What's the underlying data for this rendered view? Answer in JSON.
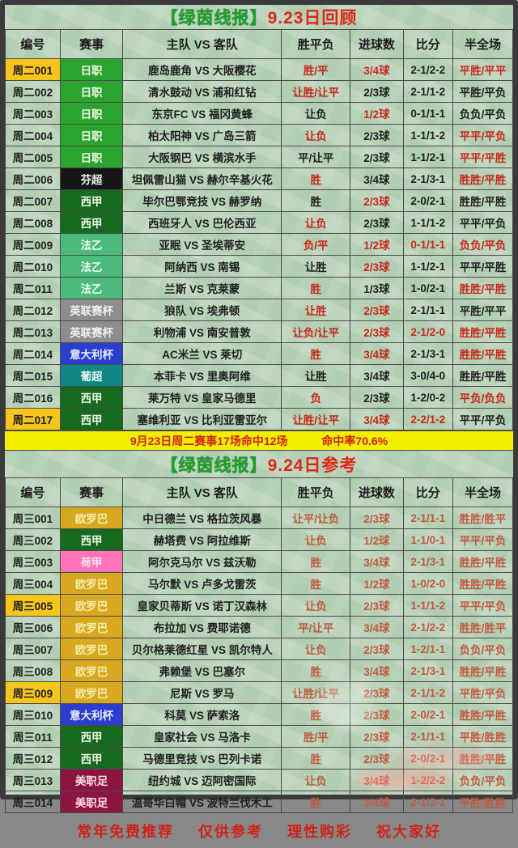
{
  "page": {
    "bg_color": "#b9d3b9",
    "frame_color": "#3a3a3a",
    "accent_red": "#cc2418",
    "accent_green": "#1f9e2e",
    "highlight_yellow": "#f6c51c",
    "banner_bg": "#f4ef00"
  },
  "columns": [
    "编号",
    "赛事",
    "主队 VS 客队",
    "胜平负",
    "进球数",
    "比分",
    "半全场"
  ],
  "league_styles": {
    "日职": {
      "bg": "#2aa42e",
      "fg": "#eef7e6"
    },
    "芬超": {
      "bg": "#151515",
      "fg": "#f0f0e8"
    },
    "西甲": {
      "bg": "#17691f",
      "fg": "#eaf3e4"
    },
    "法乙": {
      "bg": "#4cba7c",
      "fg": "#f0fbf2"
    },
    "英联赛杯": {
      "bg": "#8d8d8d",
      "fg": "#f2f2ee"
    },
    "意大利杯": {
      "bg": "#2c3ed0",
      "fg": "#e8ecff"
    },
    "葡超": {
      "bg": "#108585",
      "fg": "#e6f5f2"
    },
    "欧罗巴": {
      "bg": "#d8a81f",
      "fg": "#f7ecb0"
    },
    "荷甲": {
      "bg": "#ff74ba",
      "fg": "#ffe3f1"
    },
    "美职足": {
      "bg": "#8c1440",
      "fg": "#ffdce4"
    }
  },
  "tables": [
    {
      "title_prefix": "【绿茵线报】",
      "title_suffix": "9.23日回顾",
      "all_red": false,
      "rows": [
        {
          "no": "周二001",
          "hl": true,
          "league": "日职",
          "match": "鹿岛鹿角 VS 大阪樱花",
          "wdl": "胜/平",
          "goals": "3/4球",
          "score": "2-1/2-2",
          "htft": "平胜/平平",
          "red": [
            "wdl",
            "goals",
            "htft"
          ]
        },
        {
          "no": "周二002",
          "hl": false,
          "league": "日职",
          "match": "清水鼓动 VS 浦和红钻",
          "wdl": "让胜/让平",
          "goals": "2/3球",
          "score": "2-1/1-2",
          "htft": "平胜/平负",
          "red": [
            "wdl"
          ]
        },
        {
          "no": "周二003",
          "hl": false,
          "league": "日职",
          "match": "东京FC VS 福冈黄蜂",
          "wdl": "让负",
          "goals": "1/2球",
          "score": "0-1/1-1",
          "htft": "负负/平负",
          "red": [
            "goals"
          ]
        },
        {
          "no": "周二004",
          "hl": false,
          "league": "日职",
          "match": "柏太阳神 VS 广岛三箭",
          "wdl": "让负",
          "goals": "2/3球",
          "score": "1-1/1-2",
          "htft": "平平/平负",
          "red": [
            "wdl",
            "htft"
          ]
        },
        {
          "no": "周二005",
          "hl": false,
          "league": "日职",
          "match": "大阪钢巴 VS 横滨水手",
          "wdl": "平/让平",
          "goals": "2/3球",
          "score": "1-1/2-1",
          "htft": "平平/平胜",
          "red": [
            "htft"
          ]
        },
        {
          "no": "周二006",
          "hl": false,
          "league": "芬超",
          "match": "坦佩雷山猫 VS 赫尔辛基火花",
          "wdl": "胜",
          "goals": "3/4球",
          "score": "2-1/3-1",
          "htft": "胜胜/平胜",
          "red": [
            "wdl",
            "htft"
          ]
        },
        {
          "no": "周二007",
          "hl": false,
          "league": "西甲",
          "match": "毕尔巴鄂竞技 VS 赫罗纳",
          "wdl": "胜",
          "goals": "2/3球",
          "score": "2-0/2-1",
          "htft": "胜胜/平胜",
          "red": [
            "goals"
          ]
        },
        {
          "no": "周二008",
          "hl": false,
          "league": "西甲",
          "match": "西班牙人 VS 巴伦西亚",
          "wdl": "让负",
          "goals": "2/3球",
          "score": "1-1/1-2",
          "htft": "平平/平负",
          "red": [
            "wdl"
          ]
        },
        {
          "no": "周二009",
          "hl": false,
          "league": "法乙",
          "match": "亚眠 VS 圣埃蒂安",
          "wdl": "负/平",
          "goals": "1/2球",
          "score": "0-1/1-1",
          "htft": "负负/平负",
          "red": [
            "wdl",
            "goals",
            "score",
            "htft"
          ]
        },
        {
          "no": "周二010",
          "hl": false,
          "league": "法乙",
          "match": "阿纳西 VS 南锡",
          "wdl": "让胜",
          "goals": "2/3球",
          "score": "1-1/2-1",
          "htft": "平平/平胜",
          "red": [
            "goals"
          ]
        },
        {
          "no": "周二011",
          "hl": false,
          "league": "法乙",
          "match": "兰斯 VS 克莱蒙",
          "wdl": "胜",
          "goals": "1/3球",
          "score": "1-0/2-1",
          "htft": "胜胜/平胜",
          "red": [
            "wdl",
            "htft"
          ]
        },
        {
          "no": "周二012",
          "hl": false,
          "league": "英联赛杯",
          "match": "狼队 VS 埃弗顿",
          "wdl": "让胜",
          "goals": "2/3球",
          "score": "2-1/1-1",
          "htft": "平胜/平平",
          "red": [
            "wdl",
            "goals"
          ]
        },
        {
          "no": "周二013",
          "hl": false,
          "league": "英联赛杯",
          "match": "利物浦 VS 南安普敦",
          "wdl": "让负/让平",
          "goals": "2/3球",
          "score": "2-1/2-0",
          "htft": "胜胜/平胜",
          "red": [
            "wdl",
            "goals",
            "score",
            "htft"
          ]
        },
        {
          "no": "周二014",
          "hl": false,
          "league": "意大利杯",
          "match": "AC米兰 VS 莱切",
          "wdl": "胜",
          "goals": "3/4球",
          "score": "2-1/3-1",
          "htft": "胜胜/平胜",
          "red": [
            "wdl",
            "goals",
            "htft"
          ]
        },
        {
          "no": "周二015",
          "hl": false,
          "league": "葡超",
          "match": "本菲卡 VS 里奥阿维",
          "wdl": "让胜",
          "goals": "3/4球",
          "score": "3-0/4-0",
          "htft": "胜胜/平胜",
          "red": []
        },
        {
          "no": "周二016",
          "hl": false,
          "league": "西甲",
          "match": "莱万特 VS 皇家马德里",
          "wdl": "负",
          "goals": "2/3球",
          "score": "1-2/0-2",
          "htft": "平负/负负",
          "red": [
            "wdl",
            "htft"
          ]
        },
        {
          "no": "周二017",
          "hl": true,
          "league": "西甲",
          "match": "塞维利亚 VS 比利亚雷亚尔",
          "wdl": "让胜/让平",
          "goals": "3/4球",
          "score": "2-2/1-2",
          "htft": "平平/平负",
          "red": [
            "wdl",
            "goals",
            "score"
          ]
        }
      ]
    },
    {
      "title_prefix": "【绿茵线报】",
      "title_suffix": "9.24日参考",
      "all_red": true,
      "rows": [
        {
          "no": "周三001",
          "hl": false,
          "league": "欧罗巴",
          "match": "中日德兰 VS 格拉茨风暴",
          "wdl": "让平/让负",
          "goals": "2/3球",
          "score": "2-1/1-1",
          "htft": "胜胜/胜平",
          "red": []
        },
        {
          "no": "周三002",
          "hl": false,
          "league": "西甲",
          "match": "赫塔费 VS 阿拉维斯",
          "wdl": "让负",
          "goals": "1/2球",
          "score": "1-1/0-1",
          "htft": "平平/平负",
          "red": []
        },
        {
          "no": "周三003",
          "hl": false,
          "league": "荷甲",
          "match": "阿尔克马尔 VS 兹沃勒",
          "wdl": "胜",
          "goals": "3/4球",
          "score": "2-1/3-1",
          "htft": "胜胜/平胜",
          "red": []
        },
        {
          "no": "周三004",
          "hl": false,
          "league": "欧罗巴",
          "match": "马尔默 VS 卢多戈雷茨",
          "wdl": "胜",
          "goals": "1/2球",
          "score": "1-0/2-0",
          "htft": "胜胜/平胜",
          "red": []
        },
        {
          "no": "周三005",
          "hl": true,
          "league": "欧罗巴",
          "match": "皇家贝蒂斯 VS 诺丁汉森林",
          "wdl": "让负",
          "goals": "2/3球",
          "score": "1-1/1-2",
          "htft": "平平/平负",
          "red": []
        },
        {
          "no": "周三006",
          "hl": false,
          "league": "欧罗巴",
          "match": "布拉加 VS 费耶诺德",
          "wdl": "平/让平",
          "goals": "3/4球",
          "score": "2-1/2-2",
          "htft": "胜胜/胜平",
          "red": []
        },
        {
          "no": "周三007",
          "hl": false,
          "league": "欧罗巴",
          "match": "贝尔格莱德红星 VS 凯尔特人",
          "wdl": "让负",
          "goals": "2/3球",
          "score": "1-2/1-1",
          "htft": "负负/平负",
          "red": []
        },
        {
          "no": "周三008",
          "hl": false,
          "league": "欧罗巴",
          "match": "弗赖堡 VS 巴塞尔",
          "wdl": "胜",
          "goals": "3/4球",
          "score": "2-1/3-1",
          "htft": "胜胜/平胜",
          "red": []
        },
        {
          "no": "周三009",
          "hl": true,
          "league": "欧罗巴",
          "match": "尼斯 VS 罗马",
          "wdl": "让胜/让平",
          "goals": "2/3球",
          "score": "2-1/1-2",
          "htft": "平胜/平负",
          "red": []
        },
        {
          "no": "周三010",
          "hl": false,
          "league": "意大利杯",
          "match": "科莫 VS 萨索洛",
          "wdl": "胜",
          "goals": "2/3球",
          "score": "2-0/2-1",
          "htft": "胜胜/平胜",
          "red": []
        },
        {
          "no": "周三011",
          "hl": false,
          "league": "西甲",
          "match": "皇家社会 VS 马洛卡",
          "wdl": "胜/平",
          "goals": "2/3球",
          "score": "2-1/1-1",
          "htft": "平胜/胜胜",
          "red": []
        },
        {
          "no": "周三012",
          "hl": false,
          "league": "西甲",
          "match": "马德里竞技 VS 巴列卡诺",
          "wdl": "胜",
          "goals": "2/3球",
          "score": "2-0/2-1",
          "htft": "胜胜/平胜",
          "red": []
        },
        {
          "no": "周三013",
          "hl": false,
          "league": "美职足",
          "match": "纽约城 VS 迈阿密国际",
          "wdl": "让负",
          "goals": "3/4球",
          "score": "1-2/2-2",
          "htft": "负负/平负",
          "red": []
        },
        {
          "no": "周三014",
          "hl": false,
          "league": "美职足",
          "match": "温哥华白帽 VS 波特兰伐木工",
          "wdl": "胜",
          "goals": "3/4球",
          "score": "2-1/3-1",
          "htft": "平胜/胜胜",
          "red": []
        }
      ]
    }
  ],
  "banner": {
    "text": "9月23日周二赛事17场命中12场",
    "rate": "命中率70.6%"
  },
  "footer": {
    "items": [
      "常年免费推荐",
      "仅供参考",
      "理性购彩",
      "祝大家好"
    ]
  }
}
